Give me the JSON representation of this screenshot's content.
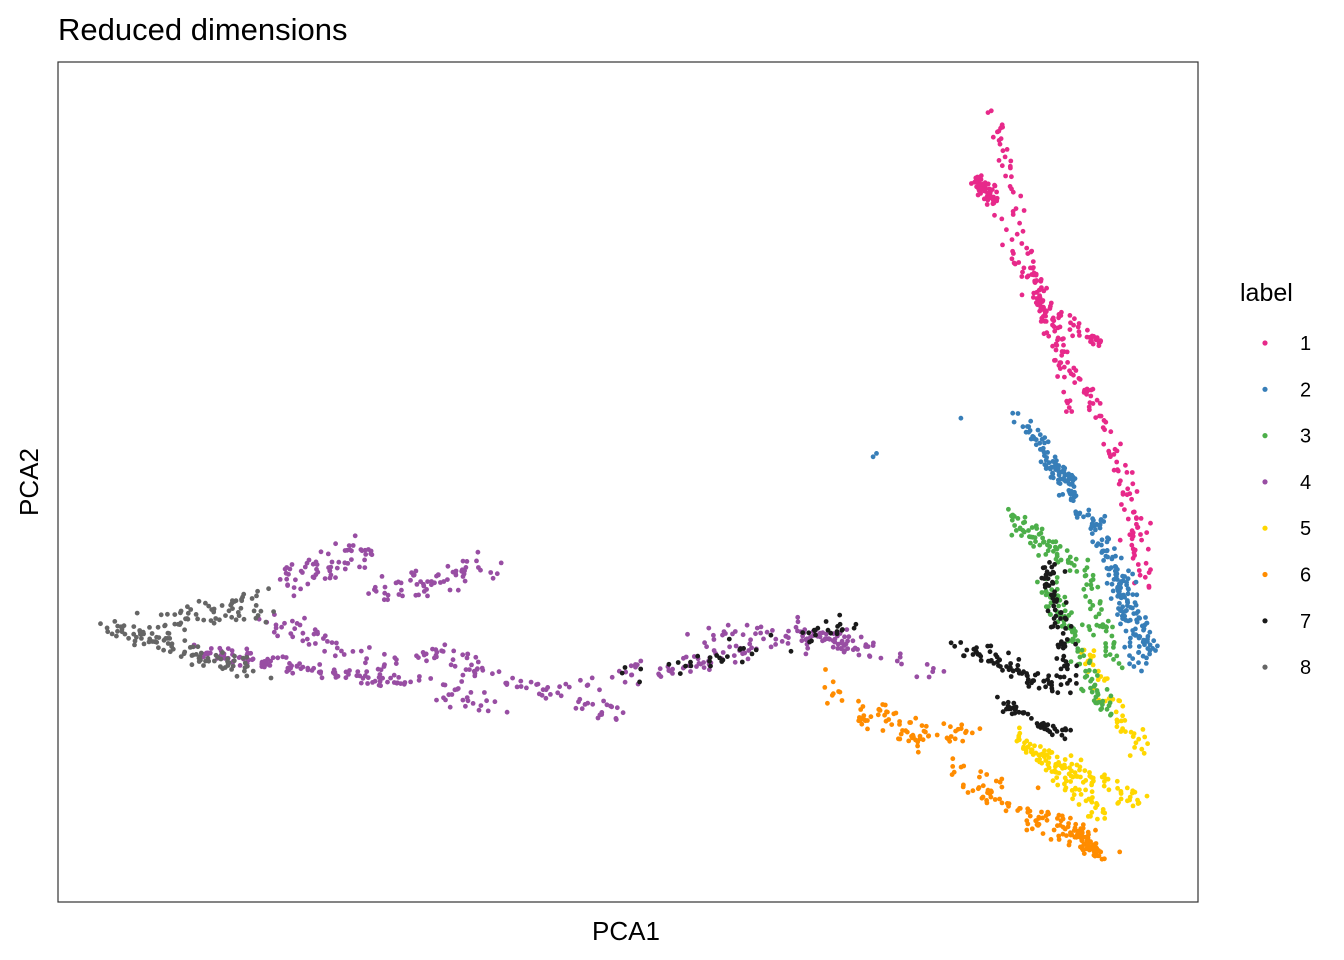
{
  "chart_data": {
    "type": "scatter",
    "title": "Reduced dimensions",
    "xlabel": "PCA1",
    "ylabel": "PCA2",
    "xlim": [
      0,
      100
    ],
    "ylim": [
      0,
      100
    ],
    "axis_ticks_shown": false,
    "grid": false,
    "legend_title": "label",
    "legend_position": "right",
    "series": [
      {
        "name": "1",
        "color": "#E7298A",
        "segments": [
          [
            82,
            94,
            89,
            58,
            10,
            0.8
          ],
          [
            81,
            86,
            94,
            50,
            14,
            1.0
          ],
          [
            94,
            50,
            95,
            38,
            6,
            1.2
          ],
          [
            85,
            72,
            92,
            66,
            6,
            0.8
          ],
          [
            80.5,
            86,
            82,
            84,
            6,
            0.8
          ]
        ]
      },
      {
        "name": "2",
        "color": "#377EB8",
        "segments": [
          [
            84,
            58,
            89,
            50,
            6,
            0.8
          ],
          [
            86,
            54,
            90,
            46,
            5,
            0.8
          ],
          [
            88,
            52,
            94,
            36,
            5,
            0.8
          ],
          [
            91,
            46,
            95,
            28,
            10,
            1.2
          ],
          [
            93,
            40,
            96,
            30,
            8,
            1.2
          ]
        ],
        "points": [
          [
            71.5,
            53
          ],
          [
            71.8,
            53.4
          ],
          [
            79.2,
            57.6
          ]
        ]
      },
      {
        "name": "3",
        "color": "#4DAF4A",
        "segments": [
          [
            83.5,
            46,
            89,
            40,
            8,
            1.2
          ],
          [
            87,
            38,
            92,
            22,
            12,
            1.2
          ],
          [
            90,
            40,
            93,
            28,
            6,
            1.2
          ]
        ]
      },
      {
        "name": "4",
        "color": "#984EA3",
        "segments": [
          [
            12,
            30,
            30,
            26,
            14,
            1.0
          ],
          [
            18,
            34,
            38,
            23,
            10,
            1.5
          ],
          [
            32,
            30,
            50,
            22,
            10,
            1.5
          ],
          [
            46,
            26,
            62,
            30,
            8,
            1.5
          ],
          [
            56,
            32,
            70,
            31,
            8,
            1.5
          ],
          [
            64,
            33,
            78,
            27,
            6,
            1.2
          ],
          [
            20,
            38,
            28,
            42,
            8,
            2.0
          ],
          [
            28,
            37,
            38,
            40,
            8,
            2.0
          ]
        ]
      },
      {
        "name": "5",
        "color": "#FFD700",
        "segments": [
          [
            84,
            20,
            92,
            10,
            10,
            1.2
          ],
          [
            86,
            18,
            95,
            12,
            8,
            1.2
          ],
          [
            90,
            30,
            95,
            18,
            6,
            1.0
          ]
        ]
      },
      {
        "name": "6",
        "color": "#FF8C00",
        "segments": [
          [
            67,
            26,
            92,
            6,
            10,
            1.8
          ],
          [
            70,
            22,
            80,
            20,
            6,
            1.5
          ],
          [
            88,
            10,
            92,
            5,
            8,
            0.8
          ],
          [
            80,
            14,
            90,
            6,
            6,
            1.0
          ]
        ]
      },
      {
        "name": "7",
        "color": "#1A1A1A",
        "segments": [
          [
            79,
            31,
            88,
            25,
            9,
            1.2
          ],
          [
            87,
            40,
            89,
            25,
            9,
            1.0
          ],
          [
            50,
            27,
            70,
            33,
            6,
            1.5
          ],
          [
            82,
            24,
            88,
            20,
            6,
            1.0
          ]
        ]
      },
      {
        "name": "8",
        "color": "#666666",
        "segments": [
          [
            4.5,
            33,
            18,
            27,
            12,
            1.5
          ],
          [
            8,
            32,
            18,
            36,
            8,
            2.0
          ]
        ]
      }
    ]
  }
}
